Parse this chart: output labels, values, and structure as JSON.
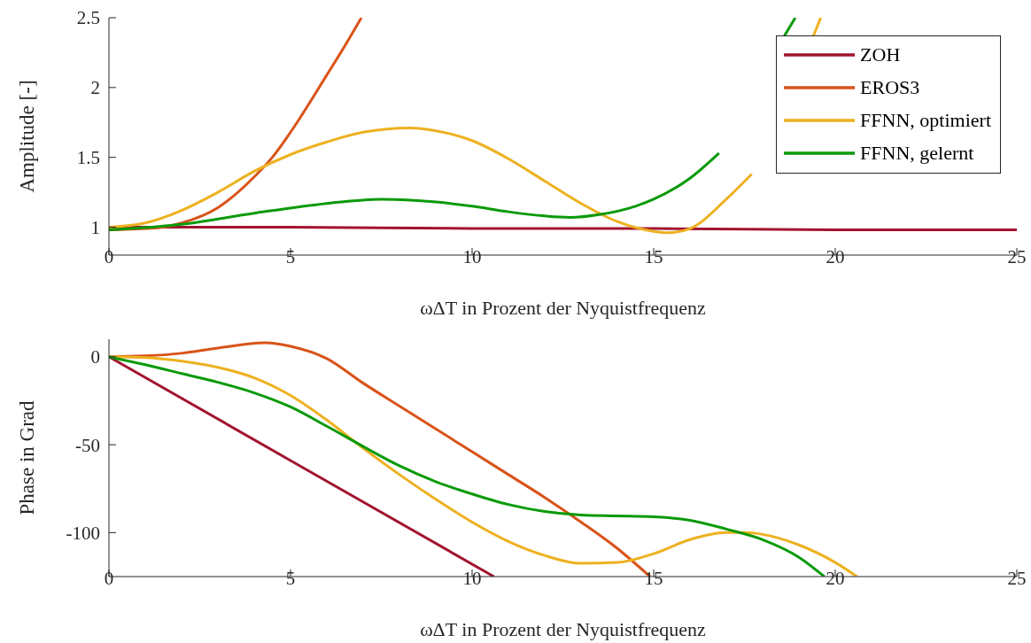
{
  "chart_data": [
    {
      "type": "line",
      "ylabel": "Amplitude [-]",
      "xlabel": "ωΔT in Prozent der Nyquistfrequenz",
      "xlim": [
        0,
        25
      ],
      "xticks": [
        0,
        5,
        10,
        15,
        20,
        25
      ],
      "ylim": [
        0.8,
        2.5
      ],
      "yticks": [
        1,
        1.5,
        2,
        2.5
      ],
      "legend": "top right",
      "grid": false,
      "series": [
        {
          "name": "ZOH",
          "color": "#a2142f",
          "x": [
            0,
            5,
            10,
            15,
            20,
            25
          ],
          "values": [
            1.0,
            1.0,
            0.99,
            0.99,
            0.98,
            0.98
          ]
        },
        {
          "name": "EROS3",
          "color": "#d95319",
          "x": [
            0,
            1,
            1.5,
            2,
            3,
            4,
            4.5,
            5,
            6,
            6.5,
            6.95
          ],
          "values": [
            0.98,
            0.99,
            1.0,
            1.03,
            1.14,
            1.36,
            1.5,
            1.68,
            2.09,
            2.3,
            2.5
          ]
        },
        {
          "name": "FFNN, optimiert",
          "color": "#edb120",
          "x": [
            0,
            1,
            2,
            3,
            4,
            5,
            6,
            7,
            8.3,
            9,
            10,
            11,
            12,
            13,
            14,
            15,
            15.4,
            16,
            17,
            17.7,
            18.5,
            19.4,
            19.6
          ],
          "values": [
            1.0,
            1.03,
            1.12,
            1.25,
            1.4,
            1.52,
            1.61,
            1.68,
            1.71,
            1.69,
            1.62,
            1.49,
            1.33,
            1.17,
            1.04,
            0.97,
            0.96,
            0.99,
            1.2,
            1.38,
            null,
            2.37,
            2.5
          ]
        },
        {
          "name": "FFNN, gelernt",
          "color": "#0a9a0a",
          "x": [
            0,
            2,
            4,
            6,
            7.5,
            9,
            10,
            11,
            12,
            12.7,
            13.5,
            14.5,
            15,
            16,
            16.8,
            17.7,
            18.6,
            18.9
          ],
          "values": [
            0.98,
            1.02,
            1.1,
            1.17,
            1.2,
            1.18,
            1.15,
            1.11,
            1.08,
            1.07,
            1.09,
            1.15,
            1.2,
            1.35,
            1.53,
            null,
            2.37,
            2.5
          ]
        }
      ]
    },
    {
      "type": "line",
      "ylabel": "Phase in Grad",
      "xlabel": "ωΔT in Prozent der Nyquistfrequenz",
      "xlim": [
        0,
        25
      ],
      "xticks": [
        0,
        5,
        10,
        15,
        20,
        25
      ],
      "ylim": [
        -125,
        10
      ],
      "yticks": [
        -100,
        -50,
        0
      ],
      "legend": false,
      "grid": false,
      "series": [
        {
          "color": "#a2142f",
          "x": [
            0,
            5,
            10.6
          ],
          "values": [
            0,
            -59,
            -125
          ]
        },
        {
          "color": "#d95319",
          "x": [
            0,
            1,
            2,
            3,
            4.3,
            5,
            6,
            7,
            8,
            9,
            10,
            11,
            12,
            13,
            14,
            14.9
          ],
          "values": [
            0,
            0.5,
            2,
            5,
            8,
            6,
            -1,
            -15,
            -28,
            -41,
            -54,
            -67,
            -80,
            -94,
            -109,
            -125
          ]
        },
        {
          "color": "#edb120",
          "x": [
            0,
            1,
            2,
            3,
            4,
            5,
            6,
            7,
            8,
            9,
            10,
            11,
            12,
            13,
            14,
            15,
            16,
            17,
            17.5,
            18,
            19,
            20,
            20.6
          ],
          "values": [
            0,
            -0.5,
            -2.5,
            -6,
            -12,
            -22,
            -36,
            -52,
            -67,
            -81,
            -94,
            -105,
            -113,
            -117.5,
            -117,
            -112,
            -104,
            -100,
            -100,
            -101,
            -107,
            -117,
            -125
          ]
        },
        {
          "color": "#0a9a0a",
          "x": [
            0,
            1,
            2,
            3,
            4,
            5,
            6,
            7,
            8,
            9,
            10,
            11,
            12,
            13,
            14,
            15,
            16,
            17,
            18,
            19,
            19.7
          ],
          "values": [
            0,
            -4.5,
            -9.5,
            -14.5,
            -20.5,
            -28.5,
            -39.5,
            -51,
            -62,
            -71,
            -78,
            -84,
            -88,
            -90,
            -90.5,
            -91,
            -93,
            -98,
            -104,
            -114,
            -125
          ]
        }
      ]
    }
  ]
}
